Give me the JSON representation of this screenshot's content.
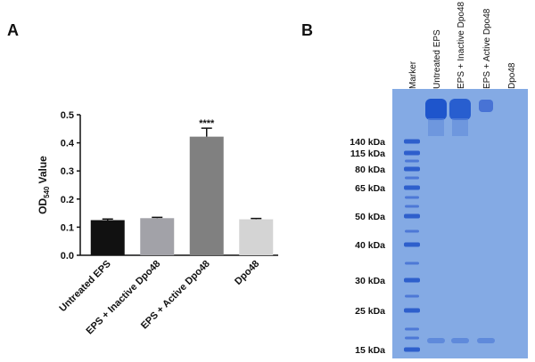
{
  "chart_data": {
    "type": "bar",
    "panel_label": "A",
    "y_label": {
      "text": "OD",
      "subscript": "540",
      "suffix": "Value"
    },
    "categories": [
      "Untreated EPS",
      "EPS + Inactive Dpo48",
      "EPS + Active Dpo48",
      "Dpo48"
    ],
    "values": [
      0.125,
      0.132,
      0.422,
      0.128
    ],
    "errors": [
      0.004,
      0.003,
      0.03,
      0.003
    ],
    "colors": [
      "#111111",
      "#a2a2a8",
      "#808080",
      "#d4d4d4"
    ],
    "annotation": {
      "index": 2,
      "text": "****"
    },
    "ylim": [
      0,
      0.5
    ],
    "yticks": [
      {
        "value": 0,
        "label": "0.0"
      },
      0.1,
      0.2,
      0.3,
      0.4,
      0.5
    ]
  },
  "gel": {
    "panel_label": "B",
    "lanes": [
      "Marker",
      "Untreated EPS",
      "EPS + Inactive Dpo48",
      "EPS + Active  Dpo48",
      "Dpo48"
    ],
    "markers": [
      "140 kDa",
      "115 kDa",
      "80 kDa",
      "65 kDa",
      "50 kDa",
      "40 kDa",
      "30 kDa",
      "25 kDa",
      "15 kDa"
    ]
  }
}
